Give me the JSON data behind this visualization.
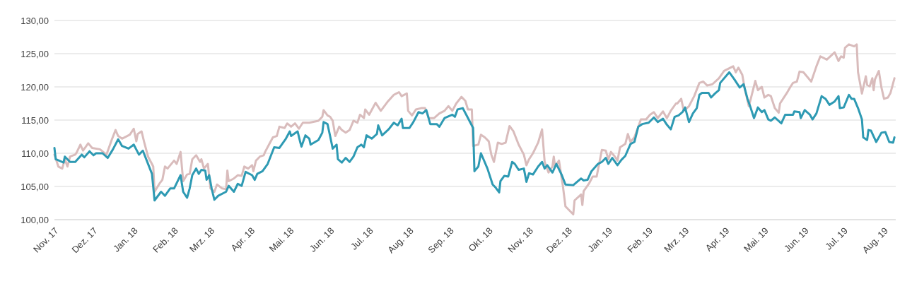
{
  "chart_data": {
    "type": "line",
    "xlim": [
      "2017-11-01",
      "2019-08-10"
    ],
    "xticks": [
      {
        "value": "2017-11-01",
        "label": "Nov. 17"
      },
      {
        "value": "2017-12-01",
        "label": "Dez. 17"
      },
      {
        "value": "2018-01-01",
        "label": "Jan. 18"
      },
      {
        "value": "2018-02-01",
        "label": "Feb. 18"
      },
      {
        "value": "2018-03-01",
        "label": "Mrz. 18"
      },
      {
        "value": "2018-04-01",
        "label": "Apr. 18"
      },
      {
        "value": "2018-05-01",
        "label": "Mai. 18"
      },
      {
        "value": "2018-06-01",
        "label": "Jun. 18"
      },
      {
        "value": "2018-07-01",
        "label": "Jul. 18"
      },
      {
        "value": "2018-08-01",
        "label": "Aug. 18"
      },
      {
        "value": "2018-09-01",
        "label": "Sep. 18"
      },
      {
        "value": "2018-10-01",
        "label": "Okt. 18"
      },
      {
        "value": "2018-11-01",
        "label": "Nov. 18"
      },
      {
        "value": "2018-12-01",
        "label": "Dez. 18"
      },
      {
        "value": "2019-01-01",
        "label": "Jan. 19"
      },
      {
        "value": "2019-02-01",
        "label": "Feb. 19"
      },
      {
        "value": "2019-03-01",
        "label": "Mrz. 19"
      },
      {
        "value": "2019-04-01",
        "label": "Apr. 19"
      },
      {
        "value": "2019-05-01",
        "label": "Mai. 19"
      },
      {
        "value": "2019-06-01",
        "label": "Jun. 19"
      },
      {
        "value": "2019-07-01",
        "label": "Jul. 19"
      },
      {
        "value": "2019-08-01",
        "label": "Aug. 19"
      }
    ],
    "ylim": [
      100,
      130
    ],
    "yticks": [
      {
        "value": 100,
        "label": "100,00"
      },
      {
        "value": 105,
        "label": "105,00"
      },
      {
        "value": 110,
        "label": "110,00"
      },
      {
        "value": 115,
        "label": "115,00"
      },
      {
        "value": 120,
        "label": "120,00"
      },
      {
        "value": 125,
        "label": "125,00"
      },
      {
        "value": 130,
        "label": "130,00"
      }
    ],
    "grid": "y",
    "marker": "none",
    "line_style": "solid",
    "series": [
      {
        "color": "#d9bcbc",
        "x": [
          "2017-11-01",
          "2017-11-04",
          "2017-11-07",
          "2017-11-09",
          "2017-11-11",
          "2017-11-13",
          "2017-11-17",
          "2017-11-18",
          "2017-11-21",
          "2017-11-23",
          "2017-11-27",
          "2017-11-30",
          "2017-12-06",
          "2017-12-11",
          "2017-12-15",
          "2017-12-18",
          "2017-12-20",
          "2017-12-23",
          "2017-12-29",
          "2018-01-01",
          "2018-01-03",
          "2018-01-04",
          "2018-01-07",
          "2018-01-09",
          "2018-01-12",
          "2018-01-16",
          "2018-01-17",
          "2018-01-21",
          "2018-01-23",
          "2018-01-25",
          "2018-01-27",
          "2018-02-01",
          "2018-02-03",
          "2018-02-06",
          "2018-02-08",
          "2018-02-11",
          "2018-02-13",
          "2018-02-15",
          "2018-02-18",
          "2018-02-21",
          "2018-02-22",
          "2018-02-24",
          "2018-02-27",
          "2018-03-01",
          "2018-03-04",
          "2018-03-06",
          "2018-03-10",
          "2018-03-13",
          "2018-03-14",
          "2018-03-15",
          "2018-03-19",
          "2018-03-22",
          "2018-03-25",
          "2018-03-27",
          "2018-03-30",
          "2018-04-02",
          "2018-04-03",
          "2018-04-05",
          "2018-04-08",
          "2018-04-11",
          "2018-04-12",
          "2018-04-15",
          "2018-04-18",
          "2018-04-21",
          "2018-04-23",
          "2018-04-27",
          "2018-04-29",
          "2018-05-02",
          "2018-05-05",
          "2018-05-08",
          "2018-05-11",
          "2018-05-16",
          "2018-05-23",
          "2018-05-26",
          "2018-05-27",
          "2018-05-30",
          "2018-06-01",
          "2018-06-03",
          "2018-06-05",
          "2018-06-08",
          "2018-06-10",
          "2018-06-13",
          "2018-06-16",
          "2018-06-19",
          "2018-06-22",
          "2018-06-24",
          "2018-06-27",
          "2018-06-28",
          "2018-07-01",
          "2018-07-06",
          "2018-07-10",
          "2018-07-15",
          "2018-07-20",
          "2018-07-22",
          "2018-07-24",
          "2018-07-26",
          "2018-07-30",
          "2018-07-31",
          "2018-08-03",
          "2018-08-06",
          "2018-08-10",
          "2018-08-13",
          "2018-08-16",
          "2018-08-20",
          "2018-08-24",
          "2018-08-28",
          "2018-08-31",
          "2018-09-03",
          "2018-09-06",
          "2018-09-10",
          "2018-09-13",
          "2018-09-15",
          "2018-09-18",
          "2018-09-19",
          "2018-09-23",
          "2018-09-25",
          "2018-09-28",
          "2018-10-01",
          "2018-10-03",
          "2018-10-05",
          "2018-10-08",
          "2018-10-11",
          "2018-10-14",
          "2018-10-17",
          "2018-10-20",
          "2018-10-24",
          "2018-10-28",
          "2018-10-30",
          "2018-11-01",
          "2018-11-04",
          "2018-11-08",
          "2018-11-11",
          "2018-11-13",
          "2018-11-16",
          "2018-11-19",
          "2018-11-20",
          "2018-11-21",
          "2018-11-24",
          "2018-11-27",
          "2018-11-29",
          "2018-12-05",
          "2018-12-06",
          "2018-12-11",
          "2018-12-12",
          "2018-12-13",
          "2018-12-17",
          "2018-12-20",
          "2018-12-23",
          "2018-12-27",
          "2018-12-30",
          "2019-01-01",
          "2019-01-03",
          "2019-01-06",
          "2019-01-08",
          "2019-01-10",
          "2019-01-14",
          "2019-01-16",
          "2019-01-18",
          "2019-01-21",
          "2019-01-24",
          "2019-01-26",
          "2019-01-30",
          "2019-02-02",
          "2019-02-05",
          "2019-02-08",
          "2019-02-12",
          "2019-02-15",
          "2019-02-18",
          "2019-02-22",
          "2019-02-23",
          "2019-02-26",
          "2019-02-28",
          "2019-03-04",
          "2019-03-08",
          "2019-03-12",
          "2019-03-15",
          "2019-03-18",
          "2019-03-22",
          "2019-03-27",
          "2019-03-31",
          "2019-04-04",
          "2019-04-07",
          "2019-04-09",
          "2019-04-11",
          "2019-04-14",
          "2019-04-16",
          "2019-04-19",
          "2019-04-20",
          "2019-04-24",
          "2019-04-26",
          "2019-04-29",
          "2019-05-01",
          "2019-05-04",
          "2019-05-06",
          "2019-05-09",
          "2019-05-12",
          "2019-05-13",
          "2019-05-18",
          "2019-05-21",
          "2019-05-23",
          "2019-05-26",
          "2019-05-28",
          "2019-05-31",
          "2019-06-06",
          "2019-06-10",
          "2019-06-13",
          "2019-06-18",
          "2019-06-24",
          "2019-06-27",
          "2019-06-29",
          "2019-07-01",
          "2019-07-02",
          "2019-07-05",
          "2019-07-09",
          "2019-07-11",
          "2019-07-12",
          "2019-07-15",
          "2019-07-18",
          "2019-07-19",
          "2019-07-21",
          "2019-07-23",
          "2019-07-24",
          "2019-07-25",
          "2019-07-28",
          "2019-07-30",
          "2019-08-01",
          "2019-08-04",
          "2019-08-06",
          "2019-08-09"
        ],
        "values": [
          109.8,
          108.0,
          107.7,
          109.1,
          108.0,
          109.5,
          109.8,
          110.1,
          111.3,
          110.4,
          111.5,
          110.8,
          110.6,
          109.8,
          112.0,
          113.5,
          112.6,
          112.2,
          112.8,
          113.7,
          111.8,
          112.9,
          113.3,
          111.7,
          109.5,
          108.0,
          104.2,
          105.5,
          106.0,
          108.0,
          107.7,
          108.9,
          108.4,
          110.2,
          105.8,
          106.8,
          106.9,
          109.1,
          109.7,
          108.7,
          109.1,
          107.7,
          108.4,
          104.7,
          104.2,
          105.3,
          104.7,
          104.6,
          107.4,
          105.8,
          106.2,
          106.7,
          106.6,
          108.0,
          107.7,
          108.2,
          107.3,
          108.9,
          109.5,
          109.7,
          110.2,
          111.3,
          112.4,
          112.6,
          114.0,
          113.8,
          114.5,
          114.0,
          114.5,
          113.7,
          114.6,
          114.6,
          114.9,
          115.5,
          116.5,
          115.7,
          115.5,
          114.9,
          112.6,
          114.0,
          113.5,
          113.1,
          113.5,
          114.9,
          114.6,
          115.8,
          115.3,
          116.6,
          115.8,
          117.6,
          116.4,
          117.7,
          118.8,
          119.0,
          119.2,
          118.6,
          119.0,
          116.4,
          115.7,
          116.6,
          116.8,
          116.8,
          115.3,
          115.3,
          116.0,
          116.4,
          117.1,
          116.4,
          117.5,
          118.5,
          117.9,
          116.6,
          116.6,
          111.1,
          111.3,
          112.8,
          112.4,
          111.8,
          109.8,
          108.7,
          111.6,
          111.4,
          111.6,
          114.1,
          113.3,
          111.3,
          109.8,
          108.2,
          109.1,
          110.0,
          111.6,
          113.6,
          108.7,
          107.1,
          108.0,
          109.5,
          108.0,
          108.9,
          105.1,
          102.0,
          100.8,
          102.9,
          103.8,
          102.2,
          104.3,
          105.4,
          106.5,
          106.5,
          110.5,
          110.4,
          109.1,
          110.2,
          109.5,
          108.9,
          110.9,
          111.4,
          112.9,
          111.7,
          112.4,
          114.0,
          115.1,
          115.1,
          115.8,
          116.2,
          115.3,
          116.3,
          115.3,
          116.4,
          117.5,
          117.5,
          118.2,
          116.4,
          117.1,
          118.6,
          120.6,
          120.8,
          120.2,
          120.4,
          121.3,
          122.4,
          122.8,
          123.1,
          122.2,
          122.9,
          121.8,
          119.6,
          117.1,
          117.8,
          120.9,
          119.5,
          120.0,
          118.4,
          118.8,
          118.6,
          116.8,
          116.1,
          117.5,
          119.0,
          120.0,
          120.6,
          120.8,
          122.3,
          122.2,
          120.8,
          123.1,
          124.6,
          124.1,
          125.2,
          123.9,
          124.6,
          124.4,
          125.9,
          126.4,
          126.1,
          126.4,
          122.2,
          119.0,
          121.6,
          120.3,
          120.1,
          121.3,
          119.5,
          121.1,
          122.4,
          119.9,
          118.2,
          118.4,
          119.1,
          121.3
        ]
      },
      {
        "color": "#2e9ab3",
        "x": [
          "2017-11-01",
          "2017-11-02",
          "2017-11-08",
          "2017-11-09",
          "2017-11-13",
          "2017-11-17",
          "2017-11-22",
          "2017-11-24",
          "2017-11-28",
          "2017-12-01",
          "2017-12-03",
          "2017-12-08",
          "2017-12-12",
          "2017-12-16",
          "2017-12-20",
          "2017-12-23",
          "2017-12-28",
          "2018-01-01",
          "2018-01-05",
          "2018-01-08",
          "2018-01-11",
          "2018-01-15",
          "2018-01-17",
          "2018-01-22",
          "2018-01-25",
          "2018-01-29",
          "2018-02-01",
          "2018-02-06",
          "2018-02-08",
          "2018-02-11",
          "2018-02-13",
          "2018-02-15",
          "2018-02-18",
          "2018-02-20",
          "2018-02-22",
          "2018-02-25",
          "2018-02-26",
          "2018-02-28",
          "2018-03-02",
          "2018-03-04",
          "2018-03-07",
          "2018-03-13",
          "2018-03-15",
          "2018-03-19",
          "2018-03-22",
          "2018-03-25",
          "2018-03-28",
          "2018-04-02",
          "2018-04-04",
          "2018-04-06",
          "2018-04-10",
          "2018-04-14",
          "2018-04-19",
          "2018-04-23",
          "2018-04-28",
          "2018-05-01",
          "2018-05-02",
          "2018-05-07",
          "2018-05-09",
          "2018-05-10",
          "2018-05-13",
          "2018-05-16",
          "2018-05-17",
          "2018-05-23",
          "2018-05-26",
          "2018-05-27",
          "2018-05-30",
          "2018-06-01",
          "2018-06-03",
          "2018-06-06",
          "2018-06-07",
          "2018-06-10",
          "2018-06-13",
          "2018-06-16",
          "2018-06-19",
          "2018-06-22",
          "2018-06-25",
          "2018-06-27",
          "2018-06-29",
          "2018-07-03",
          "2018-07-07",
          "2018-07-08",
          "2018-07-11",
          "2018-07-16",
          "2018-07-20",
          "2018-07-23",
          "2018-07-26",
          "2018-07-27",
          "2018-08-01",
          "2018-08-04",
          "2018-08-08",
          "2018-08-11",
          "2018-08-14",
          "2018-08-17",
          "2018-08-22",
          "2018-08-24",
          "2018-08-28",
          "2018-09-03",
          "2018-09-05",
          "2018-09-07",
          "2018-09-11",
          "2018-09-14",
          "2018-09-19",
          "2018-09-20",
          "2018-09-23",
          "2018-09-25",
          "2018-09-30",
          "2018-10-04",
          "2018-10-06",
          "2018-10-09",
          "2018-10-10",
          "2018-10-13",
          "2018-10-16",
          "2018-10-19",
          "2018-10-21",
          "2018-10-24",
          "2018-10-28",
          "2018-10-30",
          "2018-11-01",
          "2018-11-04",
          "2018-11-08",
          "2018-11-11",
          "2018-11-13",
          "2018-11-15",
          "2018-11-19",
          "2018-11-22",
          "2018-11-26",
          "2018-11-29",
          "2018-12-05",
          "2018-12-08",
          "2018-12-11",
          "2018-12-13",
          "2018-12-16",
          "2018-12-19",
          "2018-12-24",
          "2018-12-27",
          "2018-12-30",
          "2019-01-01",
          "2019-01-04",
          "2019-01-08",
          "2019-01-11",
          "2019-01-14",
          "2019-01-18",
          "2019-01-21",
          "2019-01-24",
          "2019-01-27",
          "2019-02-01",
          "2019-02-05",
          "2019-02-08",
          "2019-02-12",
          "2019-02-15",
          "2019-02-18",
          "2019-02-21",
          "2019-02-24",
          "2019-02-27",
          "2019-03-01",
          "2019-03-04",
          "2019-03-07",
          "2019-03-10",
          "2019-03-12",
          "2019-03-14",
          "2019-03-19",
          "2019-03-21",
          "2019-03-24",
          "2019-03-27",
          "2019-03-28",
          "2019-04-04",
          "2019-04-08",
          "2019-04-12",
          "2019-04-15",
          "2019-04-18",
          "2019-04-20",
          "2019-04-23",
          "2019-04-26",
          "2019-04-29",
          "2019-05-01",
          "2019-05-04",
          "2019-05-06",
          "2019-05-09",
          "2019-05-14",
          "2019-05-17",
          "2019-05-23",
          "2019-05-24",
          "2019-05-28",
          "2019-05-29",
          "2019-06-01",
          "2019-06-05",
          "2019-06-07",
          "2019-06-10",
          "2019-06-14",
          "2019-06-17",
          "2019-06-20",
          "2019-06-24",
          "2019-06-27",
          "2019-06-28",
          "2019-07-01",
          "2019-07-05",
          "2019-07-07",
          "2019-07-09",
          "2019-07-12",
          "2019-07-15",
          "2019-07-16",
          "2019-07-19",
          "2019-07-20",
          "2019-07-22",
          "2019-07-26",
          "2019-07-30",
          "2019-08-02",
          "2019-08-05",
          "2019-08-08",
          "2019-08-09"
        ],
        "values": [
          110.8,
          109.1,
          108.6,
          109.5,
          108.7,
          108.7,
          109.8,
          109.4,
          110.3,
          109.7,
          110.0,
          110.0,
          109.3,
          110.6,
          112.1,
          111.1,
          110.7,
          111.3,
          109.8,
          110.4,
          108.9,
          106.9,
          102.9,
          104.2,
          103.6,
          104.7,
          104.7,
          106.7,
          104.2,
          103.3,
          104.7,
          106.7,
          107.7,
          106.9,
          107.5,
          107.4,
          106.0,
          106.7,
          104.6,
          103.0,
          103.6,
          104.2,
          105.1,
          104.2,
          105.4,
          105.1,
          107.2,
          106.7,
          106.0,
          106.9,
          107.3,
          108.4,
          110.9,
          110.8,
          112.2,
          113.3,
          112.6,
          113.3,
          111.7,
          111.0,
          112.7,
          112.2,
          111.3,
          112.0,
          113.1,
          114.7,
          114.4,
          112.6,
          110.7,
          111.3,
          109.1,
          108.6,
          109.3,
          108.7,
          109.5,
          110.9,
          111.3,
          110.9,
          112.7,
          112.2,
          112.9,
          114.2,
          112.7,
          113.6,
          114.6,
          114.2,
          115.2,
          113.8,
          113.8,
          114.7,
          116.2,
          116.0,
          116.5,
          114.4,
          114.4,
          114.0,
          115.3,
          115.8,
          115.5,
          116.6,
          116.8,
          115.7,
          113.8,
          107.3,
          108.0,
          110.0,
          107.7,
          105.3,
          104.9,
          104.1,
          105.8,
          106.6,
          106.5,
          108.7,
          108.4,
          107.5,
          107.7,
          105.7,
          107.0,
          106.8,
          108.0,
          108.7,
          107.7,
          108.2,
          107.1,
          108.4,
          106.8,
          105.3,
          105.2,
          105.7,
          106.2,
          105.9,
          106.0,
          107.3,
          108.4,
          108.7,
          109.3,
          108.4,
          109.3,
          108.2,
          109.0,
          109.6,
          111.4,
          111.7,
          114.0,
          114.4,
          114.6,
          115.4,
          114.7,
          115.2,
          114.3,
          113.6,
          115.5,
          115.7,
          116.2,
          116.9,
          114.7,
          116.0,
          116.8,
          118.8,
          119.1,
          119.1,
          118.4,
          119.0,
          119.5,
          120.6,
          122.2,
          121.1,
          119.9,
          120.4,
          118.2,
          117.1,
          115.3,
          116.9,
          116.2,
          116.5,
          115.1,
          114.9,
          115.4,
          114.5,
          115.8,
          115.8,
          116.3,
          116.2,
          115.3,
          116.5,
          115.8,
          115.1,
          116.0,
          118.6,
          118.2,
          117.3,
          117.8,
          118.6,
          116.8,
          116.9,
          118.8,
          118.2,
          118.2,
          116.8,
          115.1,
          112.4,
          112.0,
          113.5,
          113.4,
          111.7,
          113.1,
          113.2,
          111.7,
          111.6,
          112.4
        ]
      }
    ]
  }
}
